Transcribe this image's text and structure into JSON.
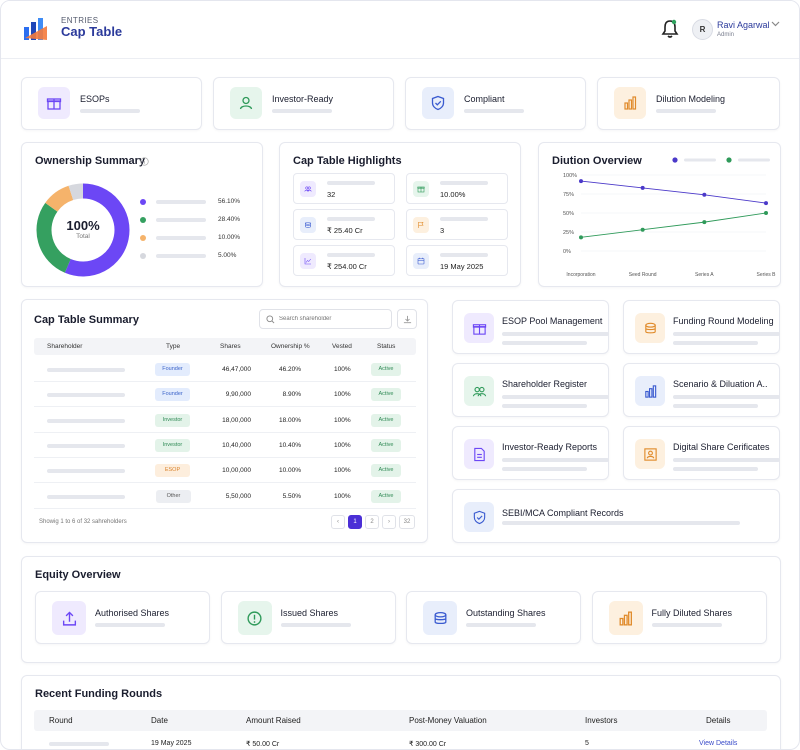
{
  "header": {
    "brand_small": "ENTRIES",
    "brand_title": "Cap Table",
    "user_initial": "R",
    "user_name": "Ravi Agarwal",
    "user_role": "Admin"
  },
  "features": [
    {
      "label": "ESOPs",
      "icon": "gift-icon"
    },
    {
      "label": "Investor-Ready",
      "icon": "user-icon"
    },
    {
      "label": "Compliant",
      "icon": "shield-check-icon"
    },
    {
      "label": "Dilution Modeling",
      "icon": "bar-chart-icon"
    }
  ],
  "ownership": {
    "title": "Ownership Summary",
    "center_value": "100%",
    "center_label": "Total",
    "items": [
      {
        "value": "56.10%",
        "color": "#6c47f5"
      },
      {
        "value": "28.40%",
        "color": "#35a060"
      },
      {
        "value": "10.00%",
        "color": "#f5b36b"
      },
      {
        "value": "5.00%",
        "color": "#d6d8de"
      }
    ]
  },
  "highlights": {
    "title": "Cap Table Highlights",
    "items": [
      {
        "value": "32",
        "icon": "users-icon"
      },
      {
        "value": "10.00%",
        "icon": "gift-icon"
      },
      {
        "value": "₹ 25.40 Cr",
        "icon": "coins-icon"
      },
      {
        "value": "3",
        "icon": "flag-icon"
      },
      {
        "value": "₹ 254.00 Cr",
        "icon": "trend-icon"
      },
      {
        "value": "19 May 2025",
        "icon": "calendar-icon"
      }
    ]
  },
  "dilution": {
    "title": "Diution Overview"
  },
  "chart_data": {
    "type": "line",
    "categories": [
      "Incorporation",
      "Seed Round",
      "Series A",
      "Series B"
    ],
    "series": [
      {
        "color": "#4b39c9",
        "values": [
          92,
          83,
          74,
          63
        ]
      },
      {
        "color": "#2f9a5a",
        "values": [
          18,
          28,
          38,
          50
        ]
      }
    ],
    "ylim": [
      0,
      100
    ],
    "yticks": [
      "100%",
      "75%",
      "50%",
      "25%",
      "0%"
    ],
    "grid": true
  },
  "summary": {
    "title": "Cap Table Summary",
    "search_placeholder": "Search shareholder",
    "columns": [
      "Shareholder",
      "Type",
      "Shares",
      "Ownership %",
      "Vested",
      "Status"
    ],
    "rows": [
      {
        "type": "Founder",
        "shares": "46,47,000",
        "own": "46.20%",
        "vested": "100%",
        "status": "Active"
      },
      {
        "type": "Founder",
        "shares": "9,90,000",
        "own": "8.90%",
        "vested": "100%",
        "status": "Active"
      },
      {
        "type": "Investor",
        "shares": "18,00,000",
        "own": "18.00%",
        "vested": "100%",
        "status": "Active"
      },
      {
        "type": "Investor",
        "shares": "10,40,000",
        "own": "10.40%",
        "vested": "100%",
        "status": "Active"
      },
      {
        "type": "ESOP",
        "shares": "10,00,000",
        "own": "10.00%",
        "vested": "100%",
        "status": "Active"
      },
      {
        "type": "Other",
        "shares": "5,50,000",
        "own": "5.50%",
        "vested": "100%",
        "status": "Active"
      }
    ],
    "footer": "Showig 1 to 6 of 32 sahreholders",
    "pages": [
      "1",
      "2",
      "32"
    ],
    "prev": "‹",
    "next": "›"
  },
  "modules": [
    {
      "label": "ESOP Pool Management"
    },
    {
      "label": "Funding Round Modeling"
    },
    {
      "label": "Shareholder Register"
    },
    {
      "label": "Scenario & Diluation A.."
    },
    {
      "label": "Investor-Ready Reports"
    },
    {
      "label": "Digital Share Cerificates"
    },
    {
      "label": "SEBI/MCA Compliant Records"
    }
  ],
  "equity": {
    "title": "Equity Overview",
    "items": [
      "Authorised Shares",
      "Issued Shares",
      "Outstanding Shares",
      "Fully Diluted Shares"
    ]
  },
  "funding": {
    "title": "Recent Funding Rounds",
    "columns": [
      "Round",
      "Date",
      "Amount Raised",
      "Post-Money Valuation",
      "Investors",
      "Details"
    ],
    "row": {
      "date": "19 May 2025",
      "amount": "₹ 50.00 Cr",
      "valuation": "₹ 300.00 Cr",
      "investors": "5",
      "link": "View Details"
    }
  }
}
